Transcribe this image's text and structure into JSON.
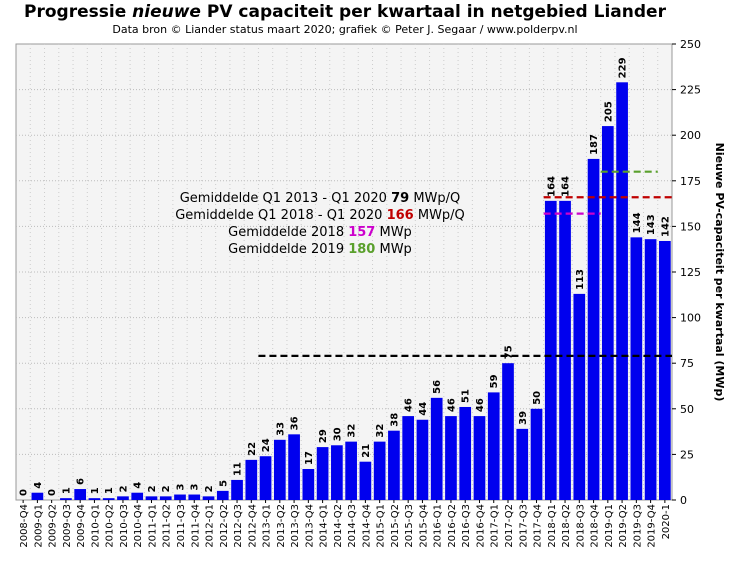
{
  "title": {
    "prefix": "Progressie ",
    "emphasis": "nieuwe",
    "suffix": " PV capaciteit per kwartaal in netgebied Liander"
  },
  "subtitle": "Data bron © Liander status maart 2020; grafiek © Peter J. Segaar / www.polderpv.nl",
  "annotations": [
    {
      "prefix": "Gemiddelde Q1 2013 - Q1 2020 ",
      "value": "79",
      "suffix": " MWp/Q",
      "color": "#000000"
    },
    {
      "prefix": "Gemiddelde Q1 2018 - Q1 2020 ",
      "value": "166",
      "suffix": " MWp/Q",
      "color": "#c00000"
    },
    {
      "prefix": "Gemiddelde 2018 ",
      "value": "157",
      "suffix": " MWp",
      "color": "#cc00cc"
    },
    {
      "prefix": "Gemiddelde 2019 ",
      "value": "180",
      "suffix": " MWp",
      "color": "#5aa02c"
    }
  ],
  "chart_data": {
    "type": "bar",
    "categories": [
      "2008-Q4",
      "2009-Q1",
      "2009-Q2",
      "2009-Q3",
      "2009-Q4",
      "2010-Q1",
      "2010-Q2",
      "2010-Q3",
      "2010-Q4",
      "2011-Q1",
      "2011-Q2",
      "2011-Q3",
      "2011-Q4",
      "2012-Q1",
      "2012-Q2",
      "2012-Q3",
      "2012-Q4",
      "2013-Q1",
      "2013-Q2",
      "2013-Q3",
      "2013-Q4",
      "2014-Q1",
      "2014-Q2",
      "2014-Q3",
      "2014-Q4",
      "2015-Q1",
      "2015-Q2",
      "2015-Q3",
      "2015-Q4",
      "2016-Q1",
      "2016-Q2",
      "2016-Q3",
      "2016-Q4",
      "2017-Q1",
      "2017-Q2",
      "2017-Q3",
      "2017-Q4",
      "2018-Q1",
      "2018-Q2",
      "2018-Q3",
      "2018-Q4",
      "2019-Q1",
      "2019-Q2",
      "2019-Q3",
      "2019-Q4",
      "2020-1"
    ],
    "values": [
      0,
      4,
      0,
      1,
      6,
      1,
      1,
      2,
      4,
      2,
      2,
      3,
      3,
      2,
      5,
      11,
      22,
      24,
      33,
      36,
      17,
      29,
      30,
      32,
      21,
      32,
      38,
      46,
      44,
      56,
      46,
      51,
      46,
      59,
      75,
      39,
      50,
      164,
      164,
      113,
      187,
      205,
      229,
      144,
      143,
      142
    ],
    "ylabel": "Nieuwe PV-capaciteit per kwartaal (MWp)",
    "ylim": [
      0,
      250
    ],
    "yticks": [
      0,
      25,
      50,
      75,
      100,
      125,
      150,
      175,
      200,
      225,
      250
    ],
    "bar_color": "#0000ee",
    "grid": true,
    "y_axis_side": "right",
    "avg_lines": [
      {
        "name": "Gemiddelde Q1 2013 - Q1 2020",
        "value": 79,
        "from": "2013-Q1",
        "to": "2020-1",
        "color": "#000000"
      },
      {
        "name": "Gemiddelde Q1 2018 - Q1 2020",
        "value": 166,
        "from": "2018-Q1",
        "to": "2020-1",
        "color": "#c00000"
      },
      {
        "name": "Gemiddelde 2018",
        "value": 157,
        "from": "2018-Q1",
        "to": "2018-Q4",
        "color": "#cc00cc"
      },
      {
        "name": "Gemiddelde 2019",
        "value": 180,
        "from": "2019-Q1",
        "to": "2019-Q4",
        "color": "#5aa02c"
      }
    ]
  }
}
